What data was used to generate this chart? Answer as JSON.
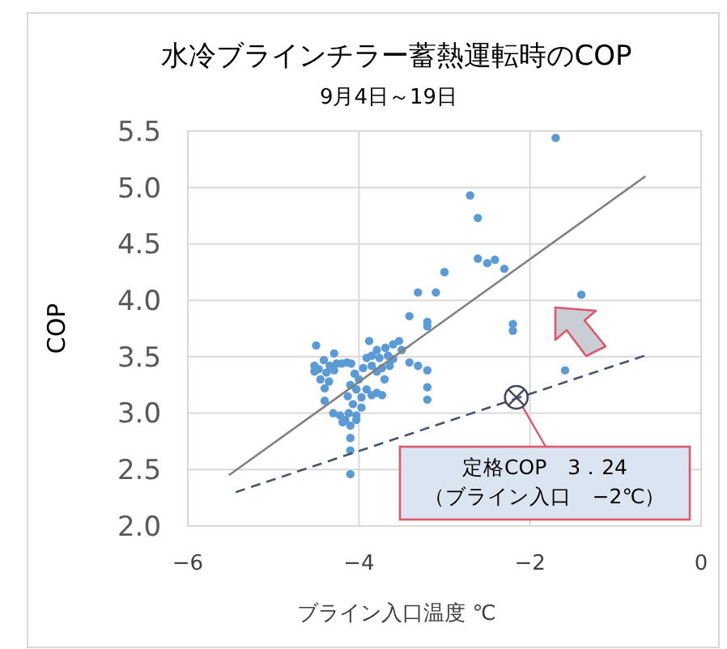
{
  "chart_data": {
    "type": "scatter",
    "title": "水冷ブラインチラー蓄熱運転時のCOP",
    "subtitle": "9月4日～19日",
    "xlabel": "ブライン入口温度 ℃",
    "ylabel": "COP",
    "xlim": [
      -6,
      0
    ],
    "ylim": [
      2,
      5.5
    ],
    "xticks": [
      {
        "value": -6,
        "label": "−6"
      },
      {
        "value": -4,
        "label": "−4"
      },
      {
        "value": -2,
        "label": "−2"
      },
      0
    ],
    "yticks": [
      {
        "value": 2,
        "label": "2.0"
      },
      2.5,
      {
        "value": 3,
        "label": "3.0"
      },
      3.5,
      {
        "value": 4,
        "label": "4.0"
      },
      4.5,
      {
        "value": 5,
        "label": "5.0"
      },
      5.5
    ],
    "grid": true,
    "series": [
      {
        "color": "#5b9bd5",
        "marker": "circle",
        "x": [
          -1.7,
          -2.7,
          -2.61,
          -2.61,
          -2.5,
          -2.41,
          -2.3,
          -3.0,
          -3.31,
          -3.1,
          -1.4,
          -3.41,
          -3.2,
          -3.2,
          -2.2,
          -2.2,
          -1.59,
          -3.41,
          -3.31,
          -3.2,
          -3.2,
          -3.2,
          -4.5,
          -4.52,
          -4.52,
          -4.47,
          -4.41,
          -4.38,
          -4.34,
          -4.29,
          -4.26,
          -4.2,
          -4.14,
          -4.09,
          -4.29,
          -4.4,
          -4.4,
          -4.3,
          -4.22,
          -4.12,
          -4.03,
          -4.16,
          -4.1,
          -4.03,
          -4.19,
          -4.1,
          -4.1,
          -4.1,
          -4.0,
          -4.03,
          -3.97,
          -3.91,
          -3.85,
          -3.79,
          -3.73,
          -3.88,
          -3.85,
          -3.79,
          -3.76,
          -3.69,
          -3.66,
          -3.6,
          -3.53,
          -3.5,
          -3.91,
          -3.85,
          -3.79,
          -3.73,
          -3.64,
          -4.1,
          -4.13,
          -4.07,
          -3.97,
          -4.05,
          -3.95,
          -3.7,
          -3.6,
          -4.45,
          -4.35
        ],
        "values": [
          5.44,
          4.93,
          4.73,
          4.37,
          4.33,
          4.36,
          4.28,
          4.25,
          4.07,
          4.07,
          4.05,
          3.86,
          3.81,
          3.77,
          3.79,
          3.73,
          3.38,
          3.45,
          3.42,
          3.38,
          3.23,
          3.12,
          3.6,
          3.42,
          3.37,
          3.39,
          3.47,
          3.36,
          3.42,
          3.38,
          3.44,
          3.44,
          3.45,
          3.44,
          3.53,
          3.22,
          3.11,
          3.0,
          2.98,
          3.0,
          2.98,
          2.94,
          2.89,
          2.94,
          2.92,
          2.78,
          2.67,
          2.46,
          3.3,
          3.21,
          3.14,
          3.21,
          3.16,
          3.18,
          3.16,
          3.64,
          3.51,
          3.56,
          3.49,
          3.58,
          3.51,
          3.61,
          3.64,
          3.56,
          3.49,
          3.42,
          3.37,
          3.4,
          3.42,
          3.25,
          3.15,
          3.08,
          3.05,
          3.35,
          3.4,
          3.3,
          3.48,
          3.3,
          3.28
        ]
      },
      {
        "type": "line",
        "color": "#808080",
        "line_style": "solid",
        "x": [
          -5.52,
          -0.65
        ],
        "values": [
          2.45,
          5.1
        ]
      },
      {
        "type": "line",
        "color": "#44546a",
        "line_style": "dashed",
        "x": [
          -5.44,
          -0.66
        ],
        "values": [
          2.3,
          3.51
        ]
      }
    ],
    "annotations": [
      {
        "text": "定格COP　3．24\n（ブライン入口　−2℃）",
        "x": -2.16,
        "y": 3.14
      }
    ]
  }
}
